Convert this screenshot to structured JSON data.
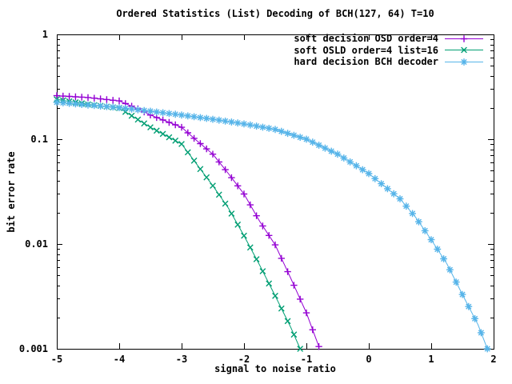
{
  "chart_data": {
    "type": "line",
    "title": "Ordered Statistics (List) Decoding of BCH(127, 64) T=10",
    "xlabel": "signal to noise ratio",
    "ylabel": "bit error rate",
    "x_range": [
      -5,
      2
    ],
    "x_ticks": [
      -5,
      -4,
      -3,
      -2,
      -1,
      0,
      1,
      2
    ],
    "x_tick_labels": [
      "-5",
      "-4",
      "-3",
      "-2",
      "-1",
      "0",
      "1",
      "2"
    ],
    "y_scale": "log",
    "y_range": [
      0.001,
      1
    ],
    "y_ticks": [
      1,
      0.1,
      0.01,
      0.001
    ],
    "y_tick_labels": [
      "1",
      "0.1",
      "0.01",
      "0.001"
    ],
    "grid": false,
    "legend_position": "top-right-inside",
    "marker_step": 0.1,
    "axis_color": "#000000",
    "series": [
      {
        "name": "soft decision OSD order=4",
        "color": "#9400d3",
        "marker": "plus",
        "points": [
          [
            -5,
            0.26
          ],
          [
            -4.5,
            0.25
          ],
          [
            -4,
            0.232
          ],
          [
            -3.7,
            0.195
          ],
          [
            -3.5,
            0.17
          ],
          [
            -3,
            0.13
          ],
          [
            -2.8,
            0.102
          ],
          [
            -2.5,
            0.072
          ],
          [
            -2.25,
            0.047
          ],
          [
            -2,
            0.03
          ],
          [
            -1.75,
            0.0165
          ],
          [
            -1.5,
            0.0098
          ],
          [
            -1.25,
            0.0047
          ],
          [
            -1,
            0.0022
          ],
          [
            -0.8,
            0.00105
          ]
        ]
      },
      {
        "name": "soft OSLD order=4 list=16",
        "color": "#009e73",
        "marker": "cross",
        "points": [
          [
            -5,
            0.24
          ],
          [
            -4.5,
            0.215
          ],
          [
            -4,
            0.198
          ],
          [
            -3.5,
            0.13
          ],
          [
            -3,
            0.09
          ],
          [
            -2.5,
            0.036
          ],
          [
            -2.25,
            0.022
          ],
          [
            -2,
            0.012
          ],
          [
            -1.75,
            0.0063
          ],
          [
            -1.5,
            0.0032
          ],
          [
            -1.25,
            0.0016
          ],
          [
            -1.1,
            0.001
          ]
        ]
      },
      {
        "name": "hard decision BCH decoder",
        "color": "#56b4e9",
        "marker": "star",
        "points": [
          [
            -5,
            0.225
          ],
          [
            -4.5,
            0.212
          ],
          [
            -4,
            0.2
          ],
          [
            -3.5,
            0.185
          ],
          [
            -3,
            0.17
          ],
          [
            -2.5,
            0.155
          ],
          [
            -2,
            0.14
          ],
          [
            -1.5,
            0.124
          ],
          [
            -1,
            0.1
          ],
          [
            -0.5,
            0.072
          ],
          [
            0,
            0.047
          ],
          [
            0.5,
            0.027
          ],
          [
            0.75,
            0.018
          ],
          [
            1,
            0.011
          ],
          [
            1.25,
            0.0065
          ],
          [
            1.5,
            0.0033
          ],
          [
            1.75,
            0.0017
          ],
          [
            1.9,
            0.001
          ]
        ]
      }
    ]
  }
}
